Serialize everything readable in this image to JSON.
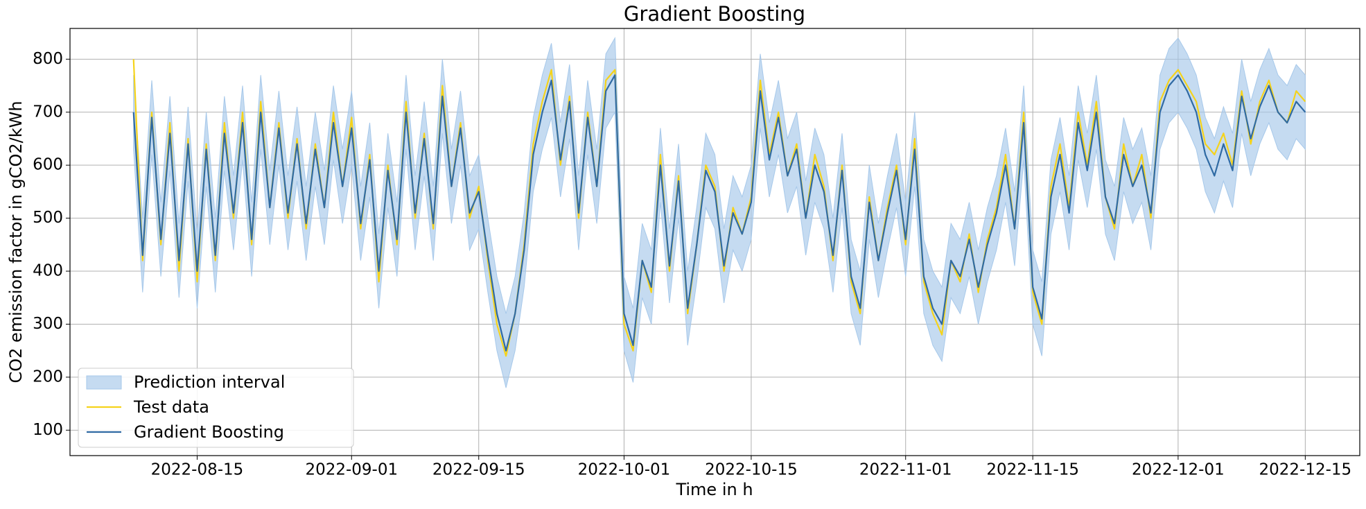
{
  "chart_data": {
    "type": "line",
    "title": "Gradient Boosting",
    "x_label": "Time in h",
    "y_label": "CO2 emission factor in gCO2/kWh",
    "xlim": [
      "2022-08-01",
      "2022-12-21"
    ],
    "xticks": [
      "2022-08-15",
      "2022-09-01",
      "2022-09-15",
      "2022-10-01",
      "2022-10-15",
      "2022-11-01",
      "2022-11-15",
      "2022-12-01",
      "2022-12-15"
    ],
    "ylim": [
      52,
      858
    ],
    "yticks": [
      100,
      200,
      300,
      400,
      500,
      600,
      700,
      800
    ],
    "grid": true,
    "legend": "lower left",
    "x": [
      "2022-08-08",
      "2022-08-09",
      "2022-08-10",
      "2022-08-11",
      "2022-08-12",
      "2022-08-13",
      "2022-08-14",
      "2022-08-15",
      "2022-08-16",
      "2022-08-17",
      "2022-08-18",
      "2022-08-19",
      "2022-08-20",
      "2022-08-21",
      "2022-08-22",
      "2022-08-23",
      "2022-08-24",
      "2022-08-25",
      "2022-08-26",
      "2022-08-27",
      "2022-08-28",
      "2022-08-29",
      "2022-08-30",
      "2022-08-31",
      "2022-09-01",
      "2022-09-02",
      "2022-09-03",
      "2022-09-04",
      "2022-09-05",
      "2022-09-06",
      "2022-09-07",
      "2022-09-08",
      "2022-09-09",
      "2022-09-10",
      "2022-09-11",
      "2022-09-12",
      "2022-09-13",
      "2022-09-14",
      "2022-09-15",
      "2022-09-16",
      "2022-09-17",
      "2022-09-18",
      "2022-09-19",
      "2022-09-20",
      "2022-09-21",
      "2022-09-22",
      "2022-09-23",
      "2022-09-24",
      "2022-09-25",
      "2022-09-26",
      "2022-09-27",
      "2022-09-28",
      "2022-09-29",
      "2022-09-30",
      "2022-10-01",
      "2022-10-02",
      "2022-10-03",
      "2022-10-04",
      "2022-10-05",
      "2022-10-06",
      "2022-10-07",
      "2022-10-08",
      "2022-10-09",
      "2022-10-10",
      "2022-10-11",
      "2022-10-12",
      "2022-10-13",
      "2022-10-14",
      "2022-10-15",
      "2022-10-16",
      "2022-10-17",
      "2022-10-18",
      "2022-10-19",
      "2022-10-20",
      "2022-10-21",
      "2022-10-22",
      "2022-10-23",
      "2022-10-24",
      "2022-10-25",
      "2022-10-26",
      "2022-10-27",
      "2022-10-28",
      "2022-10-29",
      "2022-10-30",
      "2022-10-31",
      "2022-11-01",
      "2022-11-02",
      "2022-11-03",
      "2022-11-04",
      "2022-11-05",
      "2022-11-06",
      "2022-11-07",
      "2022-11-08",
      "2022-11-09",
      "2022-11-10",
      "2022-11-11",
      "2022-11-12",
      "2022-11-13",
      "2022-11-14",
      "2022-11-15",
      "2022-11-16",
      "2022-11-17",
      "2022-11-18",
      "2022-11-19",
      "2022-11-20",
      "2022-11-21",
      "2022-11-22",
      "2022-11-23",
      "2022-11-24",
      "2022-11-25",
      "2022-11-26",
      "2022-11-27",
      "2022-11-28",
      "2022-11-29",
      "2022-11-30",
      "2022-12-01",
      "2022-12-02",
      "2022-12-03",
      "2022-12-04",
      "2022-12-05",
      "2022-12-06",
      "2022-12-07",
      "2022-12-08",
      "2022-12-09",
      "2022-12-10",
      "2022-12-11",
      "2022-12-12",
      "2022-12-13",
      "2022-12-14",
      "2022-12-15"
    ],
    "series": [
      {
        "name": "Prediction interval",
        "color": "#a6c8ea",
        "lower": [
          630,
          360,
          620,
          390,
          590,
          350,
          570,
          330,
          560,
          360,
          590,
          440,
          610,
          390,
          630,
          450,
          600,
          440,
          570,
          420,
          560,
          450,
          610,
          490,
          600,
          420,
          540,
          330,
          520,
          390,
          630,
          440,
          580,
          420,
          660,
          490,
          600,
          440,
          480,
          360,
          250,
          180,
          250,
          370,
          550,
          630,
          690,
          540,
          650,
          440,
          620,
          490,
          670,
          700,
          250,
          190,
          350,
          300,
          530,
          340,
          500,
          260,
          380,
          520,
          480,
          340,
          440,
          400,
          460,
          670,
          540,
          620,
          510,
          560,
          430,
          530,
          480,
          360,
          520,
          320,
          260,
          460,
          350,
          440,
          520,
          390,
          560,
          320,
          260,
          230,
          350,
          320,
          390,
          300,
          380,
          440,
          530,
          410,
          610,
          300,
          240,
          470,
          550,
          440,
          610,
          520,
          630,
          470,
          420,
          550,
          490,
          530,
          440,
          630,
          680,
          700,
          670,
          630,
          550,
          510,
          570,
          520,
          660,
          580,
          640,
          680,
          630,
          610,
          650,
          630
        ],
        "upper": [
          770,
          500,
          760,
          530,
          730,
          490,
          710,
          470,
          700,
          500,
          730,
          580,
          750,
          530,
          770,
          590,
          740,
          580,
          710,
          560,
          700,
          590,
          750,
          630,
          740,
          560,
          680,
          470,
          660,
          530,
          770,
          580,
          720,
          560,
          800,
          630,
          740,
          580,
          620,
          500,
          390,
          320,
          390,
          510,
          690,
          770,
          830,
          680,
          790,
          580,
          760,
          630,
          810,
          840,
          390,
          330,
          490,
          440,
          670,
          480,
          640,
          400,
          520,
          660,
          620,
          480,
          580,
          540,
          600,
          810,
          680,
          760,
          650,
          700,
          570,
          670,
          620,
          500,
          660,
          460,
          400,
          600,
          490,
          580,
          660,
          530,
          700,
          460,
          400,
          370,
          490,
          460,
          530,
          440,
          520,
          580,
          670,
          550,
          750,
          440,
          380,
          610,
          690,
          580,
          750,
          660,
          770,
          610,
          560,
          690,
          630,
          670,
          580,
          770,
          820,
          840,
          810,
          770,
          690,
          650,
          710,
          660,
          800,
          720,
          780,
          820,
          770,
          750,
          790,
          770
        ]
      },
      {
        "name": "Test data",
        "color": "#f5d31b",
        "values": [
          800,
          420,
          700,
          450,
          680,
          400,
          650,
          380,
          640,
          420,
          680,
          500,
          700,
          450,
          720,
          520,
          680,
          500,
          650,
          480,
          640,
          520,
          700,
          560,
          690,
          480,
          620,
          380,
          600,
          450,
          720,
          500,
          660,
          480,
          750,
          560,
          680,
          500,
          560,
          420,
          300,
          240,
          320,
          450,
          640,
          720,
          780,
          600,
          730,
          500,
          700,
          560,
          760,
          780,
          300,
          250,
          420,
          360,
          620,
          400,
          580,
          320,
          450,
          600,
          560,
          400,
          520,
          470,
          540,
          760,
          620,
          700,
          580,
          640,
          500,
          620,
          560,
          420,
          600,
          380,
          320,
          540,
          420,
          520,
          600,
          450,
          650,
          380,
          320,
          280,
          420,
          380,
          470,
          360,
          460,
          520,
          620,
          480,
          700,
          360,
          300,
          560,
          640,
          520,
          700,
          600,
          720,
          540,
          480,
          640,
          560,
          620,
          500,
          720,
          760,
          780,
          750,
          720,
          640,
          620,
          660,
          600,
          740,
          640,
          720,
          760,
          700,
          680,
          740,
          720
        ]
      },
      {
        "name": "Gradient Boosting",
        "color": "#2f6aa3",
        "values": [
          700,
          430,
          690,
          460,
          660,
          420,
          640,
          400,
          630,
          430,
          660,
          510,
          680,
          460,
          700,
          520,
          670,
          510,
          640,
          490,
          630,
          520,
          680,
          560,
          670,
          490,
          610,
          400,
          590,
          460,
          700,
          510,
          650,
          490,
          730,
          560,
          670,
          510,
          550,
          430,
          320,
          250,
          320,
          440,
          620,
          700,
          760,
          610,
          720,
          510,
          690,
          560,
          740,
          770,
          320,
          260,
          420,
          370,
          600,
          410,
          570,
          330,
          450,
          590,
          550,
          410,
          510,
          470,
          530,
          740,
          610,
          690,
          580,
          630,
          500,
          600,
          550,
          430,
          590,
          390,
          330,
          530,
          420,
          510,
          590,
          460,
          630,
          390,
          330,
          300,
          420,
          390,
          460,
          370,
          450,
          510,
          600,
          480,
          680,
          370,
          310,
          540,
          620,
          510,
          680,
          590,
          700,
          540,
          490,
          620,
          560,
          600,
          510,
          700,
          750,
          770,
          740,
          700,
          620,
          580,
          640,
          590,
          730,
          650,
          710,
          750,
          700,
          680,
          720,
          700
        ]
      }
    ]
  }
}
